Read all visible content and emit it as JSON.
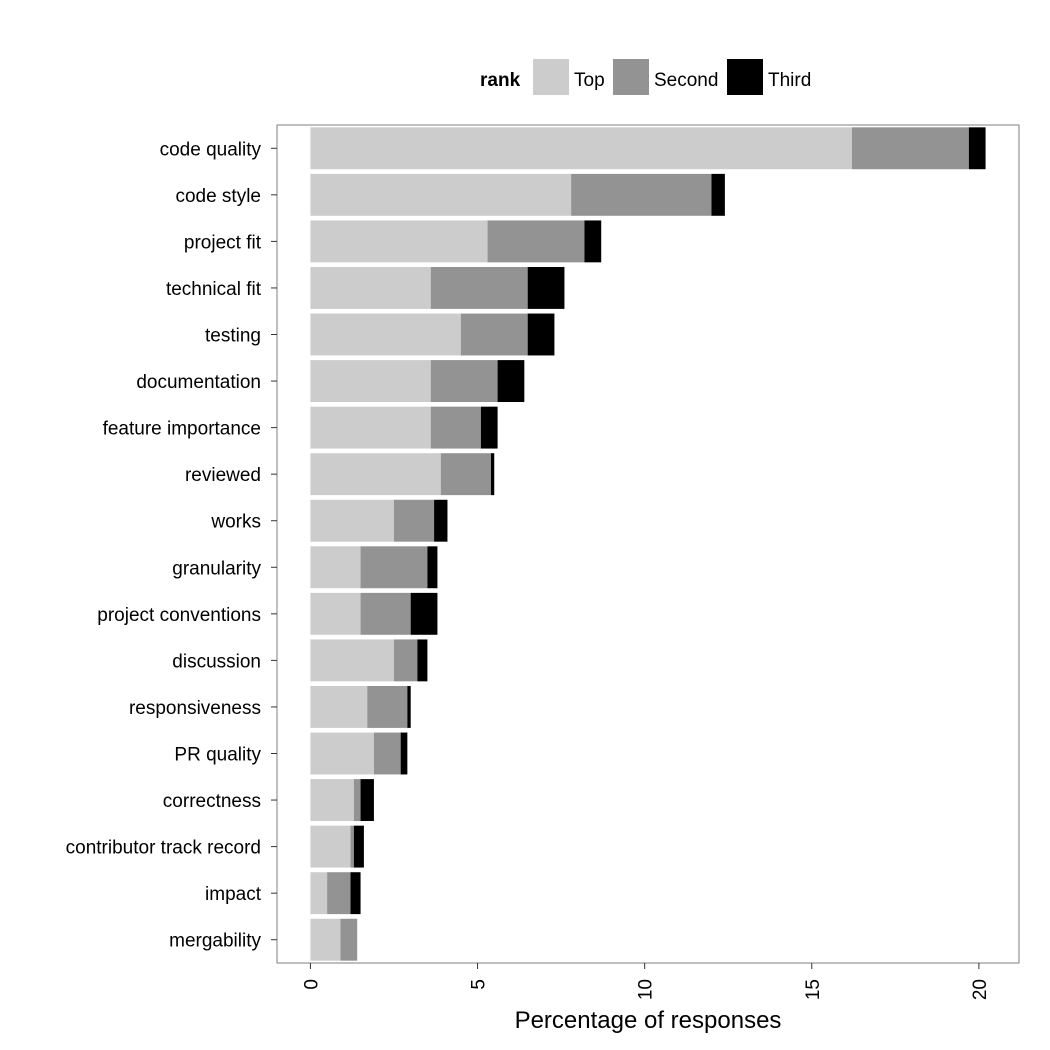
{
  "chart_data": {
    "type": "bar",
    "orientation": "horizontal",
    "stacked": true,
    "title": "",
    "xlabel": "Percentage of responses",
    "ylabel": "",
    "xlim": [
      -1,
      21.2
    ],
    "xticks": [
      0,
      5,
      10,
      15,
      20
    ],
    "grid": false,
    "legend": {
      "title": "rank",
      "position": "top"
    },
    "categories": [
      "code quality",
      "code style",
      "project fit",
      "technical fit",
      "testing",
      "documentation",
      "feature importance",
      "reviewed",
      "works",
      "granularity",
      "project conventions",
      "discussion",
      "responsiveness",
      "PR quality",
      "correctness",
      "contributor track record",
      "impact",
      "mergability"
    ],
    "series": [
      {
        "name": "Top",
        "color": "#cccccc",
        "values": [
          16.2,
          7.8,
          5.3,
          3.6,
          4.5,
          3.6,
          3.6,
          3.9,
          2.5,
          1.5,
          1.5,
          2.5,
          1.7,
          1.9,
          1.3,
          1.2,
          0.5,
          0.9
        ]
      },
      {
        "name": "Second",
        "color": "#939393",
        "values": [
          3.5,
          4.2,
          2.9,
          2.9,
          2.0,
          2.0,
          1.5,
          1.5,
          1.2,
          2.0,
          1.5,
          0.7,
          1.2,
          0.8,
          0.2,
          0.1,
          0.7,
          0.5
        ]
      },
      {
        "name": "Third",
        "color": "#000000",
        "values": [
          0.5,
          0.4,
          0.5,
          1.1,
          0.8,
          0.8,
          0.5,
          0.1,
          0.4,
          0.3,
          0.8,
          0.3,
          0.1,
          0.2,
          0.4,
          0.3,
          0.3,
          0.0
        ]
      }
    ]
  }
}
